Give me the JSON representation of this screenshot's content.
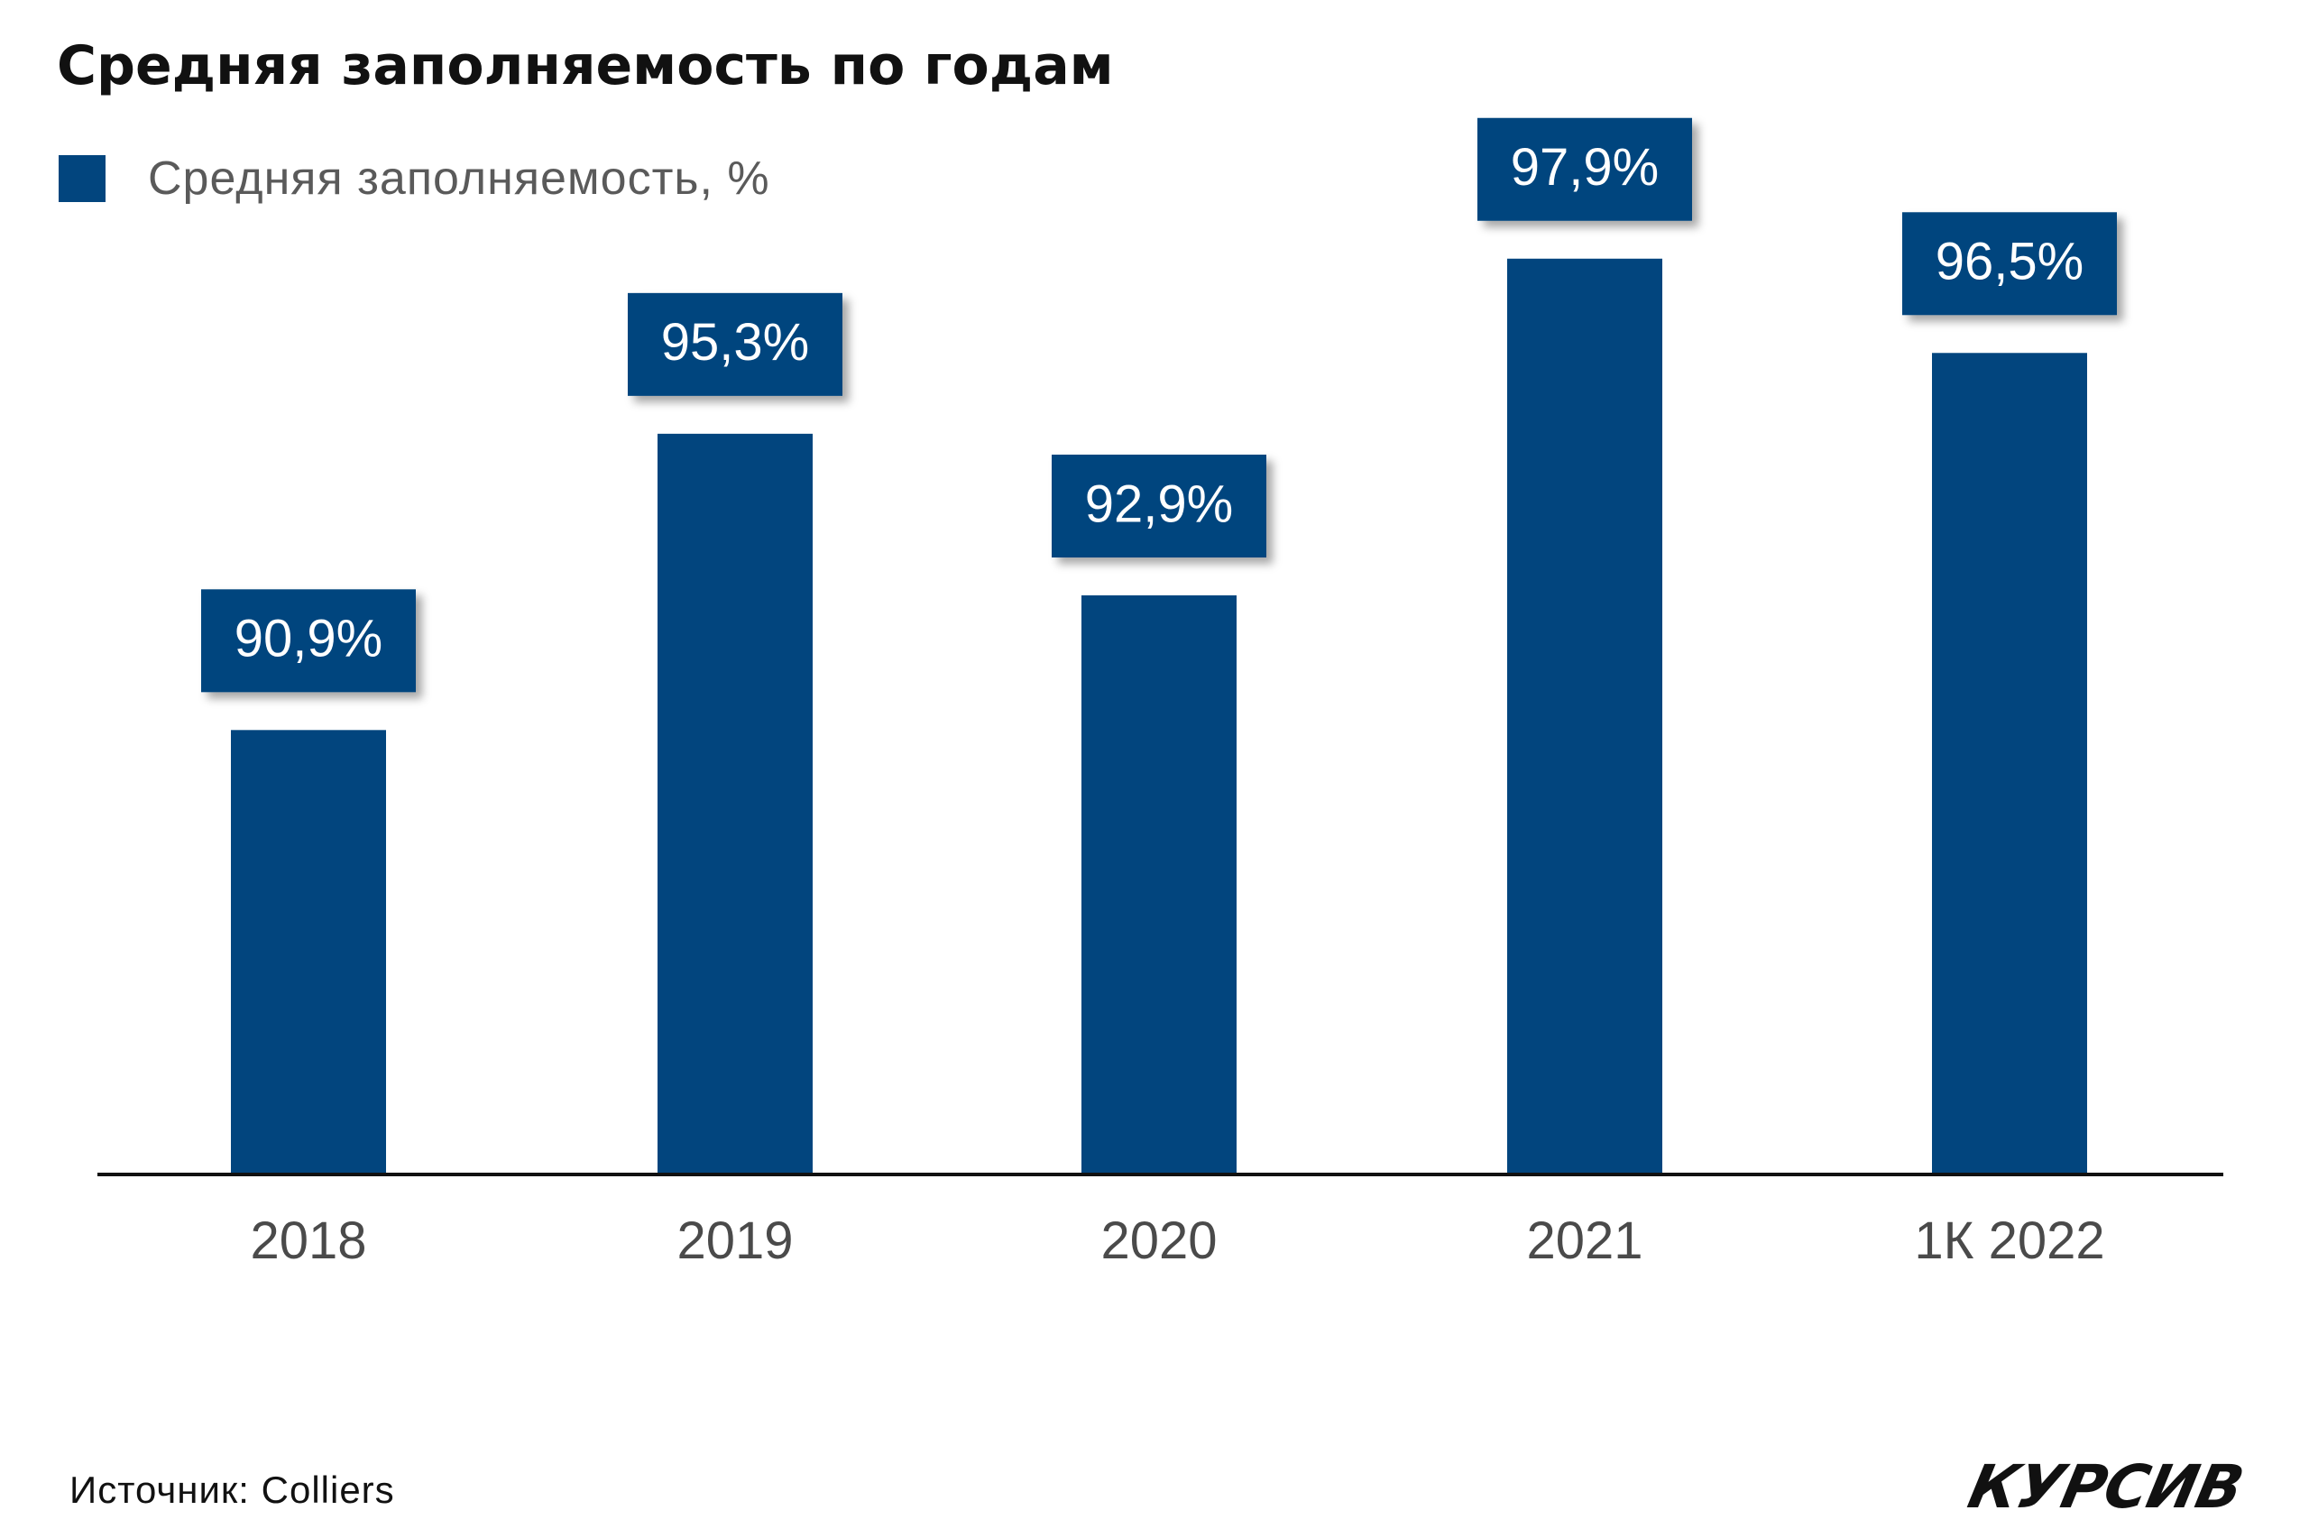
{
  "title": "Средняя заполняемость по годам",
  "legend": {
    "label": "Средняя заполняемость, %"
  },
  "source": "Источник: Colliers",
  "logo_text": "КУРСИВ",
  "colors": {
    "bar": "#02457e",
    "axis": "#111111",
    "tick_label": "#4a4a4a",
    "data_label_text": "#ffffff"
  },
  "chart_data": {
    "type": "bar",
    "title": "Средняя заполняемость по годам",
    "xlabel": "",
    "ylabel": "",
    "categories": [
      "2018",
      "2019",
      "2020",
      "2021",
      "1К 2022"
    ],
    "series": [
      {
        "name": "Средняя заполняемость, %",
        "values": [
          90.9,
          95.3,
          92.9,
          97.9,
          96.5
        ]
      }
    ],
    "data_labels": [
      "90,9%",
      "95,3%",
      "92,9%",
      "97,9%",
      "96,5%"
    ],
    "ylim": [
      84.3,
      100
    ],
    "grid": false,
    "legend_position": "top-left"
  }
}
